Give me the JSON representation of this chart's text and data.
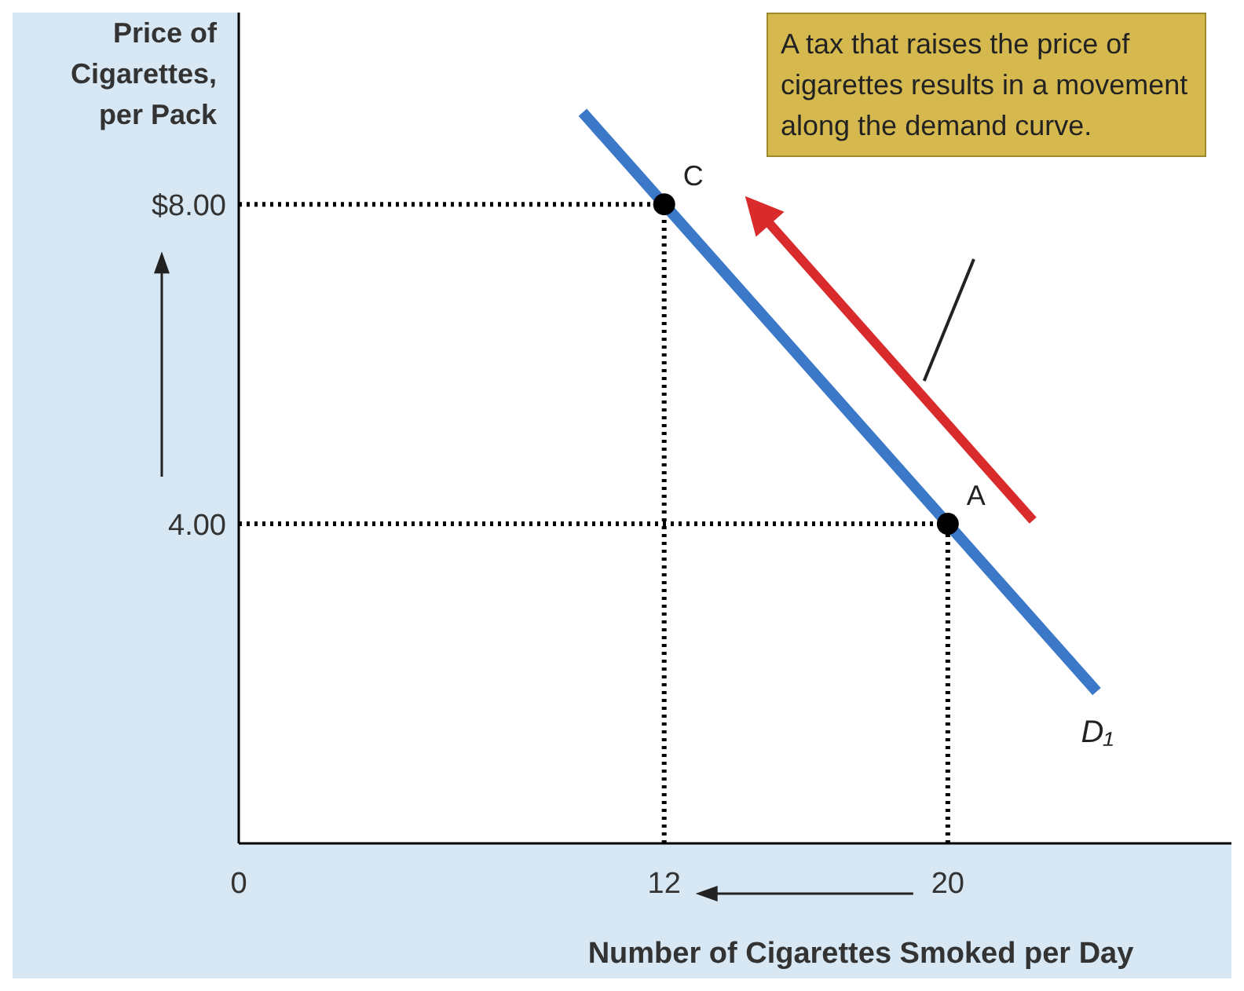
{
  "chart_data": {
    "type": "line",
    "ylabel": "Price of Cigarettes, per Pack",
    "xlabel": "Number of Cigarettes Smoked per Day",
    "xlim": [
      0,
      28
    ],
    "xticks": [
      0,
      12,
      20
    ],
    "ylim": [
      0,
      10.4
    ],
    "yticks": [
      {
        "value": 8,
        "label": "$8.00"
      },
      {
        "value": 4,
        "label": "4.00"
      }
    ],
    "series": [
      {
        "name": "D₁",
        "color": "#3b78c8",
        "x": [
          9.7,
          24.2
        ],
        "values": [
          9.15,
          1.9
        ]
      },
      {
        "type": "scatter",
        "color": "#000000",
        "x": [
          12,
          20
        ],
        "values": [
          8,
          4
        ]
      }
    ],
    "ref_lines": [
      {
        "axis": "y",
        "value": 8,
        "color": "#000000",
        "line_style": "dotted"
      },
      {
        "axis": "y",
        "value": 4,
        "color": "#000000",
        "line_style": "dotted"
      },
      {
        "axis": "x",
        "value": 12,
        "color": "#000000",
        "line_style": "dotted"
      },
      {
        "axis": "x",
        "value": 20,
        "color": "#000000",
        "line_style": "dotted"
      }
    ],
    "annotations": [
      {
        "text": "C",
        "x": 12,
        "y": 8
      },
      {
        "text": "A",
        "x": 20,
        "y": 4
      },
      "A tax that raises the price of cigarettes results in a movement along the demand curve."
    ],
    "grid": false
  }
}
